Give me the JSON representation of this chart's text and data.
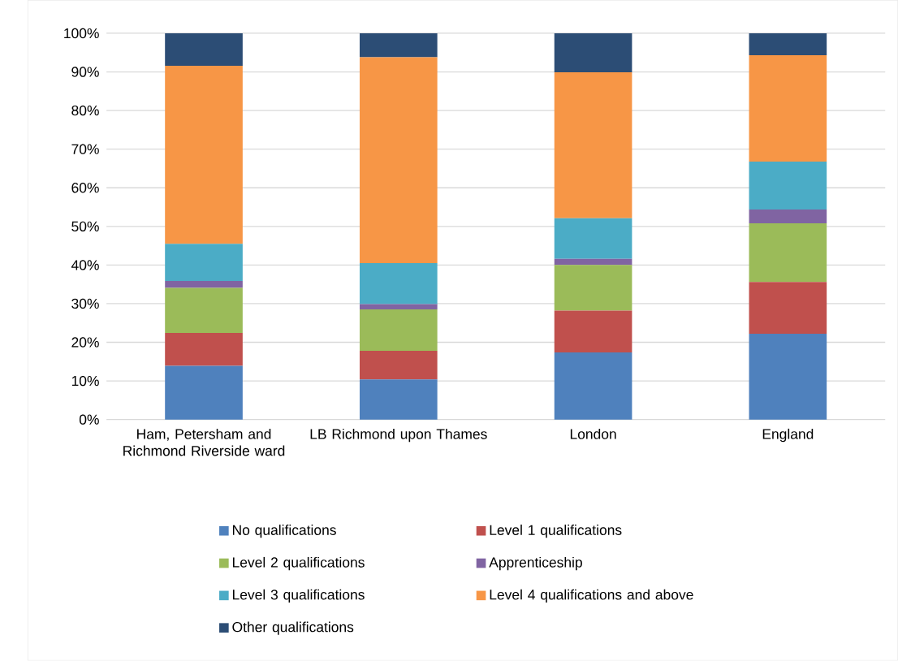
{
  "chart_data": {
    "type": "bar",
    "stacked": true,
    "categories": [
      "Ham, Petersham and Richmond Riverside ward",
      "LB Richmond upon Thames",
      "London",
      "England"
    ],
    "series": [
      {
        "name": "No qualifications",
        "color": "#4f81bd",
        "values": [
          13.9,
          10.4,
          17.4,
          22.2
        ]
      },
      {
        "name": "Level 1 qualifications",
        "color": "#c0504d",
        "values": [
          8.5,
          7.4,
          10.8,
          13.4
        ]
      },
      {
        "name": "Level 2 qualifications",
        "color": "#9bbb59",
        "values": [
          11.7,
          10.7,
          11.8,
          15.2
        ]
      },
      {
        "name": "Apprenticeship",
        "color": "#8064a2",
        "values": [
          1.8,
          1.4,
          1.6,
          3.6
        ]
      },
      {
        "name": "Level 3 qualifications",
        "color": "#4bacc6",
        "values": [
          9.6,
          10.6,
          10.5,
          12.4
        ]
      },
      {
        "name": "Level 4 qualifications and above",
        "color": "#f79646",
        "values": [
          46.1,
          53.3,
          37.8,
          27.5
        ]
      },
      {
        "name": "Other qualifications",
        "color": "#2c4d75",
        "values": [
          8.4,
          6.2,
          10.1,
          5.7
        ]
      }
    ],
    "ylim": [
      0,
      100
    ],
    "yticks": [
      {
        "value": 0,
        "label": "0%"
      },
      {
        "value": 10,
        "label": "10%"
      },
      {
        "value": 20,
        "label": "20%"
      },
      {
        "value": 30,
        "label": "30%"
      },
      {
        "value": 40,
        "label": "40%"
      },
      {
        "value": 50,
        "label": "50%"
      },
      {
        "value": 60,
        "label": "60%"
      },
      {
        "value": 70,
        "label": "70%"
      },
      {
        "value": 80,
        "label": "80%"
      },
      {
        "value": 90,
        "label": "90%"
      },
      {
        "value": 100,
        "label": "100%"
      }
    ],
    "grid": "y",
    "legend": "bottom"
  }
}
